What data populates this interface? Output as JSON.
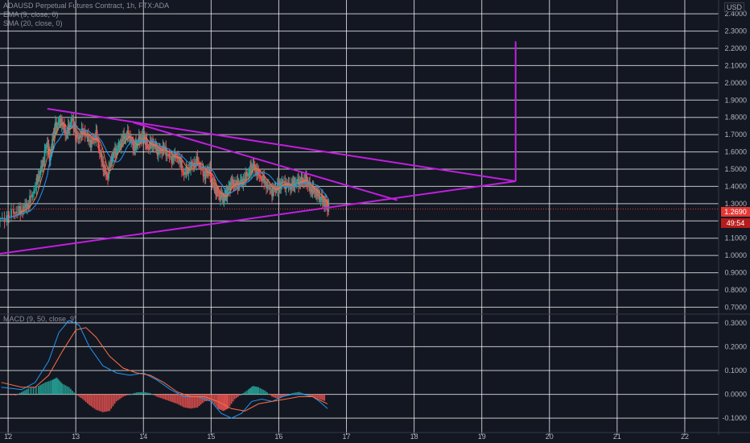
{
  "legend": {
    "symbol_line": "ADAUSD Perpetual Futures Contract, 1h, FTX:ADA",
    "ema_line": "EMA (9, close, 0)",
    "sma_line": "SMA (20, close, 0)",
    "macd_line": "MACD (9, 50, close, 9)"
  },
  "currency_label": "USD",
  "last_price_label": "1.2690",
  "countdown_label": "49:54",
  "colors": {
    "background": "#131722",
    "grid": "#ffffff",
    "trendline": "#c21ee0",
    "up_candle": "#26a69a",
    "down_candle": "#ef5350",
    "ema": "#ff7043",
    "sma": "#2196f3",
    "price_badge": "#e53935"
  },
  "chart_data": [
    {
      "type": "candlestick",
      "title": "",
      "x_tick_labels": [
        "12",
        "13",
        "14",
        "15",
        "16",
        "17",
        "18",
        "19",
        "20",
        "21",
        "22"
      ],
      "y_tick_labels": [
        "2.4000",
        "2.3000",
        "2.2000",
        "2.1000",
        "2.0000",
        "1.9000",
        "1.8000",
        "1.7000",
        "1.6000",
        "1.5000",
        "1.4000",
        "1.3000",
        "1.2000",
        "1.1000",
        "1.0000",
        "0.9000",
        "0.8000",
        "0.7000"
      ],
      "ylim": [
        0.66,
        2.48
      ],
      "xlim": [
        11.88,
        22.5
      ],
      "last_price": 1.269,
      "price_path": [
        [
          11.88,
          1.2
        ],
        [
          12.08,
          1.25
        ],
        [
          12.2,
          1.26
        ],
        [
          12.3,
          1.3
        ],
        [
          12.42,
          1.42
        ],
        [
          12.5,
          1.52
        ],
        [
          12.58,
          1.66
        ],
        [
          12.62,
          1.55
        ],
        [
          12.66,
          1.68
        ],
        [
          12.7,
          1.75
        ],
        [
          12.78,
          1.78
        ],
        [
          12.86,
          1.7
        ],
        [
          12.94,
          1.79
        ],
        [
          13.02,
          1.68
        ],
        [
          13.12,
          1.72
        ],
        [
          13.22,
          1.65
        ],
        [
          13.3,
          1.7
        ],
        [
          13.38,
          1.55
        ],
        [
          13.46,
          1.45
        ],
        [
          13.54,
          1.58
        ],
        [
          13.62,
          1.62
        ],
        [
          13.7,
          1.68
        ],
        [
          13.78,
          1.7
        ],
        [
          13.86,
          1.62
        ],
        [
          13.92,
          1.66
        ],
        [
          14.0,
          1.7
        ],
        [
          14.06,
          1.63
        ],
        [
          14.14,
          1.65
        ],
        [
          14.22,
          1.6
        ],
        [
          14.3,
          1.62
        ],
        [
          14.4,
          1.56
        ],
        [
          14.5,
          1.58
        ],
        [
          14.6,
          1.47
        ],
        [
          14.7,
          1.52
        ],
        [
          14.8,
          1.55
        ],
        [
          14.9,
          1.46
        ],
        [
          14.96,
          1.5
        ],
        [
          15.04,
          1.4
        ],
        [
          15.1,
          1.36
        ],
        [
          15.18,
          1.33
        ],
        [
          15.24,
          1.37
        ],
        [
          15.3,
          1.42
        ],
        [
          15.38,
          1.41
        ],
        [
          15.46,
          1.43
        ],
        [
          15.56,
          1.48
        ],
        [
          15.62,
          1.52
        ],
        [
          15.7,
          1.47
        ],
        [
          15.8,
          1.42
        ],
        [
          15.9,
          1.37
        ],
        [
          15.98,
          1.4
        ],
        [
          16.06,
          1.42
        ],
        [
          16.16,
          1.4
        ],
        [
          16.24,
          1.42
        ],
        [
          16.32,
          1.43
        ],
        [
          16.4,
          1.44
        ],
        [
          16.46,
          1.39
        ],
        [
          16.54,
          1.37
        ],
        [
          16.62,
          1.33
        ],
        [
          16.7,
          1.3
        ],
        [
          16.74,
          1.27
        ]
      ],
      "trendlines": [
        {
          "x1": 12.58,
          "y1": 1.85,
          "x2": 19.5,
          "y2": 1.43
        },
        {
          "x1": 13.85,
          "y1": 1.77,
          "x2": 17.75,
          "y2": 1.32
        },
        {
          "x1": 11.88,
          "y1": 1.01,
          "x2": 19.5,
          "y2": 1.43
        },
        {
          "x1": 19.5,
          "y1": 1.43,
          "x2": 19.5,
          "y2": 2.24
        }
      ]
    },
    {
      "type": "macd",
      "title": "",
      "y_tick_labels": [
        "0.3000",
        "0.2000",
        "0.1000",
        "0.0000",
        "-0.1000"
      ],
      "ylim": [
        -0.13,
        0.33
      ],
      "histogram": [
        [
          11.9,
          0.0
        ],
        [
          12.1,
          -0.005
        ],
        [
          12.2,
          0.01
        ],
        [
          12.3,
          0.025
        ],
        [
          12.45,
          0.035
        ],
        [
          12.55,
          0.05
        ],
        [
          12.65,
          0.06
        ],
        [
          12.72,
          0.07
        ],
        [
          12.8,
          0.045
        ],
        [
          12.9,
          0.03
        ],
        [
          13.0,
          0.0
        ],
        [
          13.1,
          -0.02
        ],
        [
          13.2,
          -0.045
        ],
        [
          13.3,
          -0.065
        ],
        [
          13.4,
          -0.075
        ],
        [
          13.5,
          -0.07
        ],
        [
          13.6,
          -0.03
        ],
        [
          13.7,
          -0.01
        ],
        [
          13.8,
          0.0
        ],
        [
          13.9,
          0.008
        ],
        [
          14.0,
          0.01
        ],
        [
          14.1,
          0.005
        ],
        [
          14.2,
          -0.01
        ],
        [
          14.3,
          -0.02
        ],
        [
          14.4,
          -0.03
        ],
        [
          14.5,
          -0.04
        ],
        [
          14.6,
          -0.055
        ],
        [
          14.7,
          -0.06
        ],
        [
          14.8,
          -0.055
        ],
        [
          14.9,
          -0.03
        ],
        [
          15.0,
          -0.025
        ],
        [
          15.1,
          -0.06
        ],
        [
          15.18,
          -0.07
        ],
        [
          15.25,
          -0.06
        ],
        [
          15.35,
          -0.02
        ],
        [
          15.45,
          0.0
        ],
        [
          15.55,
          0.02
        ],
        [
          15.62,
          0.035
        ],
        [
          15.7,
          0.03
        ],
        [
          15.8,
          0.015
        ],
        [
          15.9,
          -0.01
        ],
        [
          16.0,
          -0.02
        ],
        [
          16.1,
          -0.005
        ],
        [
          16.2,
          0.005
        ],
        [
          16.3,
          0.01
        ],
        [
          16.4,
          0.0
        ],
        [
          16.5,
          -0.01
        ],
        [
          16.6,
          -0.02
        ],
        [
          16.7,
          -0.03
        ]
      ],
      "macd_line": [
        [
          11.9,
          0.03
        ],
        [
          12.2,
          0.02
        ],
        [
          12.4,
          0.05
        ],
        [
          12.6,
          0.14
        ],
        [
          12.75,
          0.26
        ],
        [
          12.9,
          0.31
        ],
        [
          13.05,
          0.29
        ],
        [
          13.2,
          0.2
        ],
        [
          13.4,
          0.12
        ],
        [
          13.6,
          0.09
        ],
        [
          13.8,
          0.08
        ],
        [
          14.0,
          0.09
        ],
        [
          14.2,
          0.06
        ],
        [
          14.4,
          0.02
        ],
        [
          14.6,
          -0.01
        ],
        [
          14.8,
          -0.01
        ],
        [
          15.0,
          -0.03
        ],
        [
          15.15,
          -0.08
        ],
        [
          15.3,
          -0.1
        ],
        [
          15.45,
          -0.08
        ],
        [
          15.6,
          -0.03
        ],
        [
          15.75,
          -0.02
        ],
        [
          15.9,
          -0.03
        ],
        [
          16.05,
          -0.01
        ],
        [
          16.2,
          0.0
        ],
        [
          16.35,
          0.0
        ],
        [
          16.5,
          -0.01
        ],
        [
          16.6,
          -0.03
        ],
        [
          16.72,
          -0.06
        ]
      ],
      "signal_line": [
        [
          11.9,
          0.05
        ],
        [
          12.2,
          0.03
        ],
        [
          12.4,
          0.03
        ],
        [
          12.6,
          0.08
        ],
        [
          12.8,
          0.18
        ],
        [
          13.0,
          0.27
        ],
        [
          13.15,
          0.28
        ],
        [
          13.3,
          0.24
        ],
        [
          13.5,
          0.16
        ],
        [
          13.7,
          0.11
        ],
        [
          13.9,
          0.09
        ],
        [
          14.1,
          0.08
        ],
        [
          14.3,
          0.05
        ],
        [
          14.5,
          0.01
        ],
        [
          14.7,
          -0.01
        ],
        [
          14.9,
          -0.01
        ],
        [
          15.1,
          -0.03
        ],
        [
          15.3,
          -0.06
        ],
        [
          15.5,
          -0.07
        ],
        [
          15.7,
          -0.04
        ],
        [
          15.9,
          -0.03
        ],
        [
          16.1,
          -0.02
        ],
        [
          16.3,
          -0.01
        ],
        [
          16.5,
          -0.01
        ],
        [
          16.72,
          -0.04
        ]
      ]
    }
  ]
}
